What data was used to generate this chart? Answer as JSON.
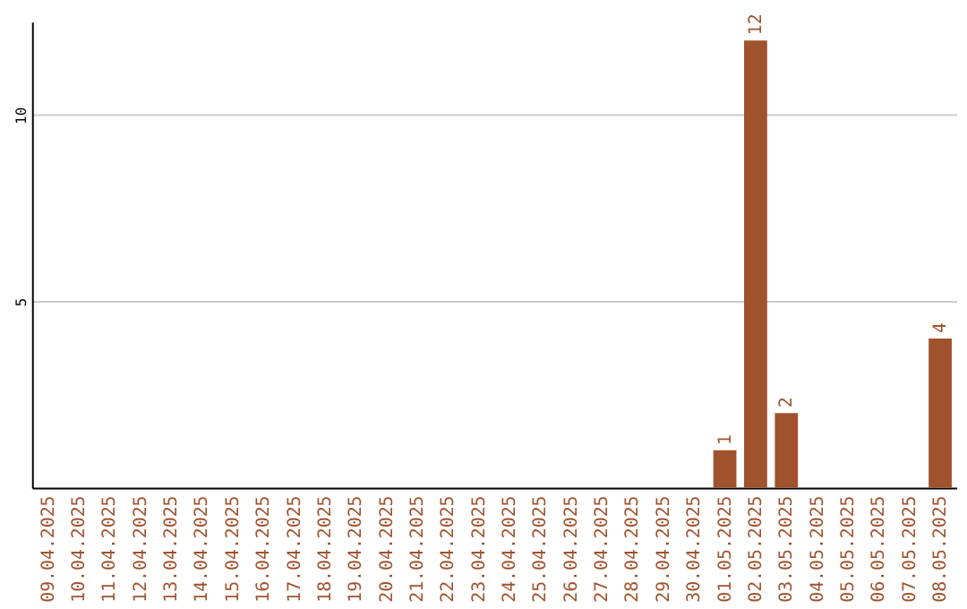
{
  "chart_data": {
    "type": "bar",
    "categories": [
      "09.04.2025",
      "10.04.2025",
      "11.04.2025",
      "12.04.2025",
      "13.04.2025",
      "14.04.2025",
      "15.04.2025",
      "16.04.2025",
      "17.04.2025",
      "18.04.2025",
      "19.04.2025",
      "20.04.2025",
      "21.04.2025",
      "22.04.2025",
      "23.04.2025",
      "24.04.2025",
      "25.04.2025",
      "26.04.2025",
      "27.04.2025",
      "28.04.2025",
      "29.04.2025",
      "30.04.2025",
      "01.05.2025",
      "02.05.2025",
      "03.05.2025",
      "04.05.2025",
      "05.05.2025",
      "06.05.2025",
      "07.05.2025",
      "08.05.2025"
    ],
    "values": [
      0,
      0,
      0,
      0,
      0,
      0,
      0,
      0,
      0,
      0,
      0,
      0,
      0,
      0,
      0,
      0,
      0,
      0,
      0,
      0,
      0,
      0,
      1,
      12,
      2,
      0,
      0,
      0,
      0,
      4
    ],
    "value_labels": [
      null,
      null,
      null,
      null,
      null,
      null,
      null,
      null,
      null,
      null,
      null,
      null,
      null,
      null,
      null,
      null,
      null,
      null,
      null,
      null,
      null,
      null,
      "1",
      "12",
      "2",
      null,
      null,
      null,
      null,
      "4"
    ],
    "color": "#a0522d",
    "ylim": [
      0,
      12.5
    ],
    "yticks": [
      5,
      10
    ],
    "grid": "y"
  }
}
